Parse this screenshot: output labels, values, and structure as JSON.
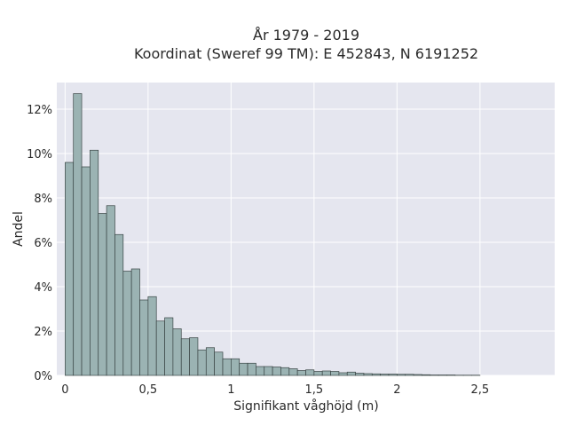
{
  "chart_data": {
    "type": "bar",
    "title": "År 1979 - 2019",
    "subtitle": "Koordinat (Sweref 99 TM): E 452843, N 6191252",
    "xlabel": "Signifikant våghöjd (m)",
    "ylabel": "Andel",
    "bin_width": 0.05,
    "bin_start": 0.0,
    "xlim": [
      -0.05,
      2.95
    ],
    "ylim": [
      0,
      13.2
    ],
    "x_ticks": [
      0,
      0.5,
      1,
      1.5,
      2,
      2.5
    ],
    "x_tick_labels": [
      "0",
      "0,5",
      "1",
      "1,5",
      "2",
      "2,5"
    ],
    "y_ticks": [
      0,
      2,
      4,
      6,
      8,
      10,
      12
    ],
    "y_tick_labels": [
      "0%",
      "2%",
      "4%",
      "6%",
      "8%",
      "10%",
      "12%"
    ],
    "values": [
      9.6,
      12.7,
      9.4,
      10.15,
      7.3,
      7.65,
      6.35,
      4.7,
      4.8,
      3.4,
      3.55,
      2.45,
      2.6,
      2.1,
      1.65,
      1.7,
      1.15,
      1.25,
      1.05,
      0.75,
      0.75,
      0.55,
      0.55,
      0.4,
      0.4,
      0.38,
      0.35,
      0.3,
      0.22,
      0.25,
      0.18,
      0.2,
      0.18,
      0.12,
      0.15,
      0.1,
      0.08,
      0.07,
      0.06,
      0.06,
      0.05,
      0.05,
      0.04,
      0.03,
      0.02,
      0.02,
      0.02,
      0.01,
      0.01,
      0.01
    ],
    "grid": true,
    "colors": {
      "bar_fill": "#9bb3b3",
      "bar_stroke": "#3a4545",
      "plot_background": "#e5e6ef",
      "grid": "#ffffff"
    }
  }
}
